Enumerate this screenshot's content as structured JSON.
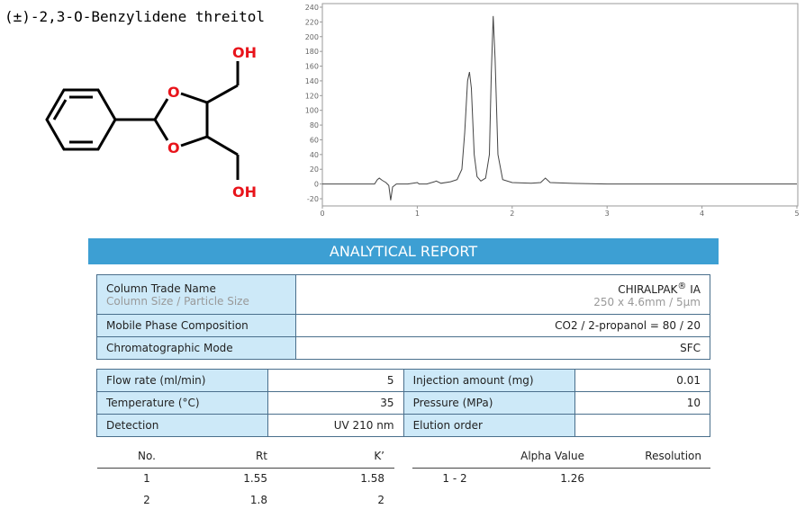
{
  "title": "(±)-2,3-O-Benzylidene threitol",
  "structure": {
    "labels": [
      "OH",
      "O",
      "O",
      "OH"
    ]
  },
  "chart_data": {
    "type": "line",
    "color": "#444444",
    "x": [
      0,
      0.55,
      0.58,
      0.6,
      0.63,
      0.67,
      0.7,
      0.72,
      0.74,
      0.78,
      0.9,
      1.0,
      1.02,
      1.1,
      1.18,
      1.2,
      1.25,
      1.35,
      1.42,
      1.47,
      1.5,
      1.53,
      1.55,
      1.57,
      1.6,
      1.63,
      1.67,
      1.72,
      1.76,
      1.78,
      1.8,
      1.82,
      1.85,
      1.9,
      2.0,
      2.2,
      2.3,
      2.35,
      2.4,
      2.6,
      3.0,
      4.0,
      5.0
    ],
    "values": [
      0,
      0,
      6,
      8,
      5,
      2,
      -2,
      -22,
      -4,
      0,
      0,
      2,
      0,
      0,
      3,
      4,
      1,
      3,
      6,
      20,
      70,
      140,
      152,
      130,
      40,
      10,
      4,
      8,
      40,
      150,
      228,
      170,
      40,
      6,
      2,
      1,
      2,
      8,
      2,
      1,
      0,
      0,
      0
    ],
    "xlim": [
      0,
      5
    ],
    "ylim": [
      -20,
      240
    ],
    "xticks": [
      0,
      1,
      2,
      3,
      4,
      5
    ],
    "yticks": [
      -20,
      0,
      20,
      40,
      60,
      80,
      100,
      120,
      140,
      160,
      180,
      200,
      220,
      240
    ],
    "grid": false
  },
  "report": {
    "title": "ANALYTICAL REPORT",
    "column": [
      {
        "label": "Column Trade Name",
        "sublabel": "Column Size / Particle Size",
        "brand": "CHIRALPAK",
        "registered": "®",
        "model": "IA",
        "size": "250 x 4.6mm / 5µm"
      },
      {
        "label": "Mobile Phase Composition",
        "value": "CO2 / 2-propanol = 80 / 20"
      },
      {
        "label": "Chromatographic Mode",
        "value": "SFC"
      }
    ],
    "conditions": [
      {
        "label": "Flow rate (ml/min)",
        "value": 5
      },
      {
        "label": "Injection amount (mg)",
        "value": 0.01
      },
      {
        "label": "Temperature (°C)",
        "value": 35
      },
      {
        "label": "Pressure (MPa)",
        "value": 10
      },
      {
        "label": "Detection",
        "value": "UV 210 nm"
      },
      {
        "label": "Elution order"
      }
    ],
    "peaks": {
      "headers": [
        "No.",
        "Rt",
        "K’"
      ],
      "rows": [
        [
          1,
          1.55,
          1.58
        ],
        [
          2,
          1.8,
          2
        ]
      ]
    },
    "separation": {
      "headers": [
        "Alpha Value",
        "Resolution"
      ],
      "pair": "1 - 2",
      "alpha": 1.26
    }
  }
}
